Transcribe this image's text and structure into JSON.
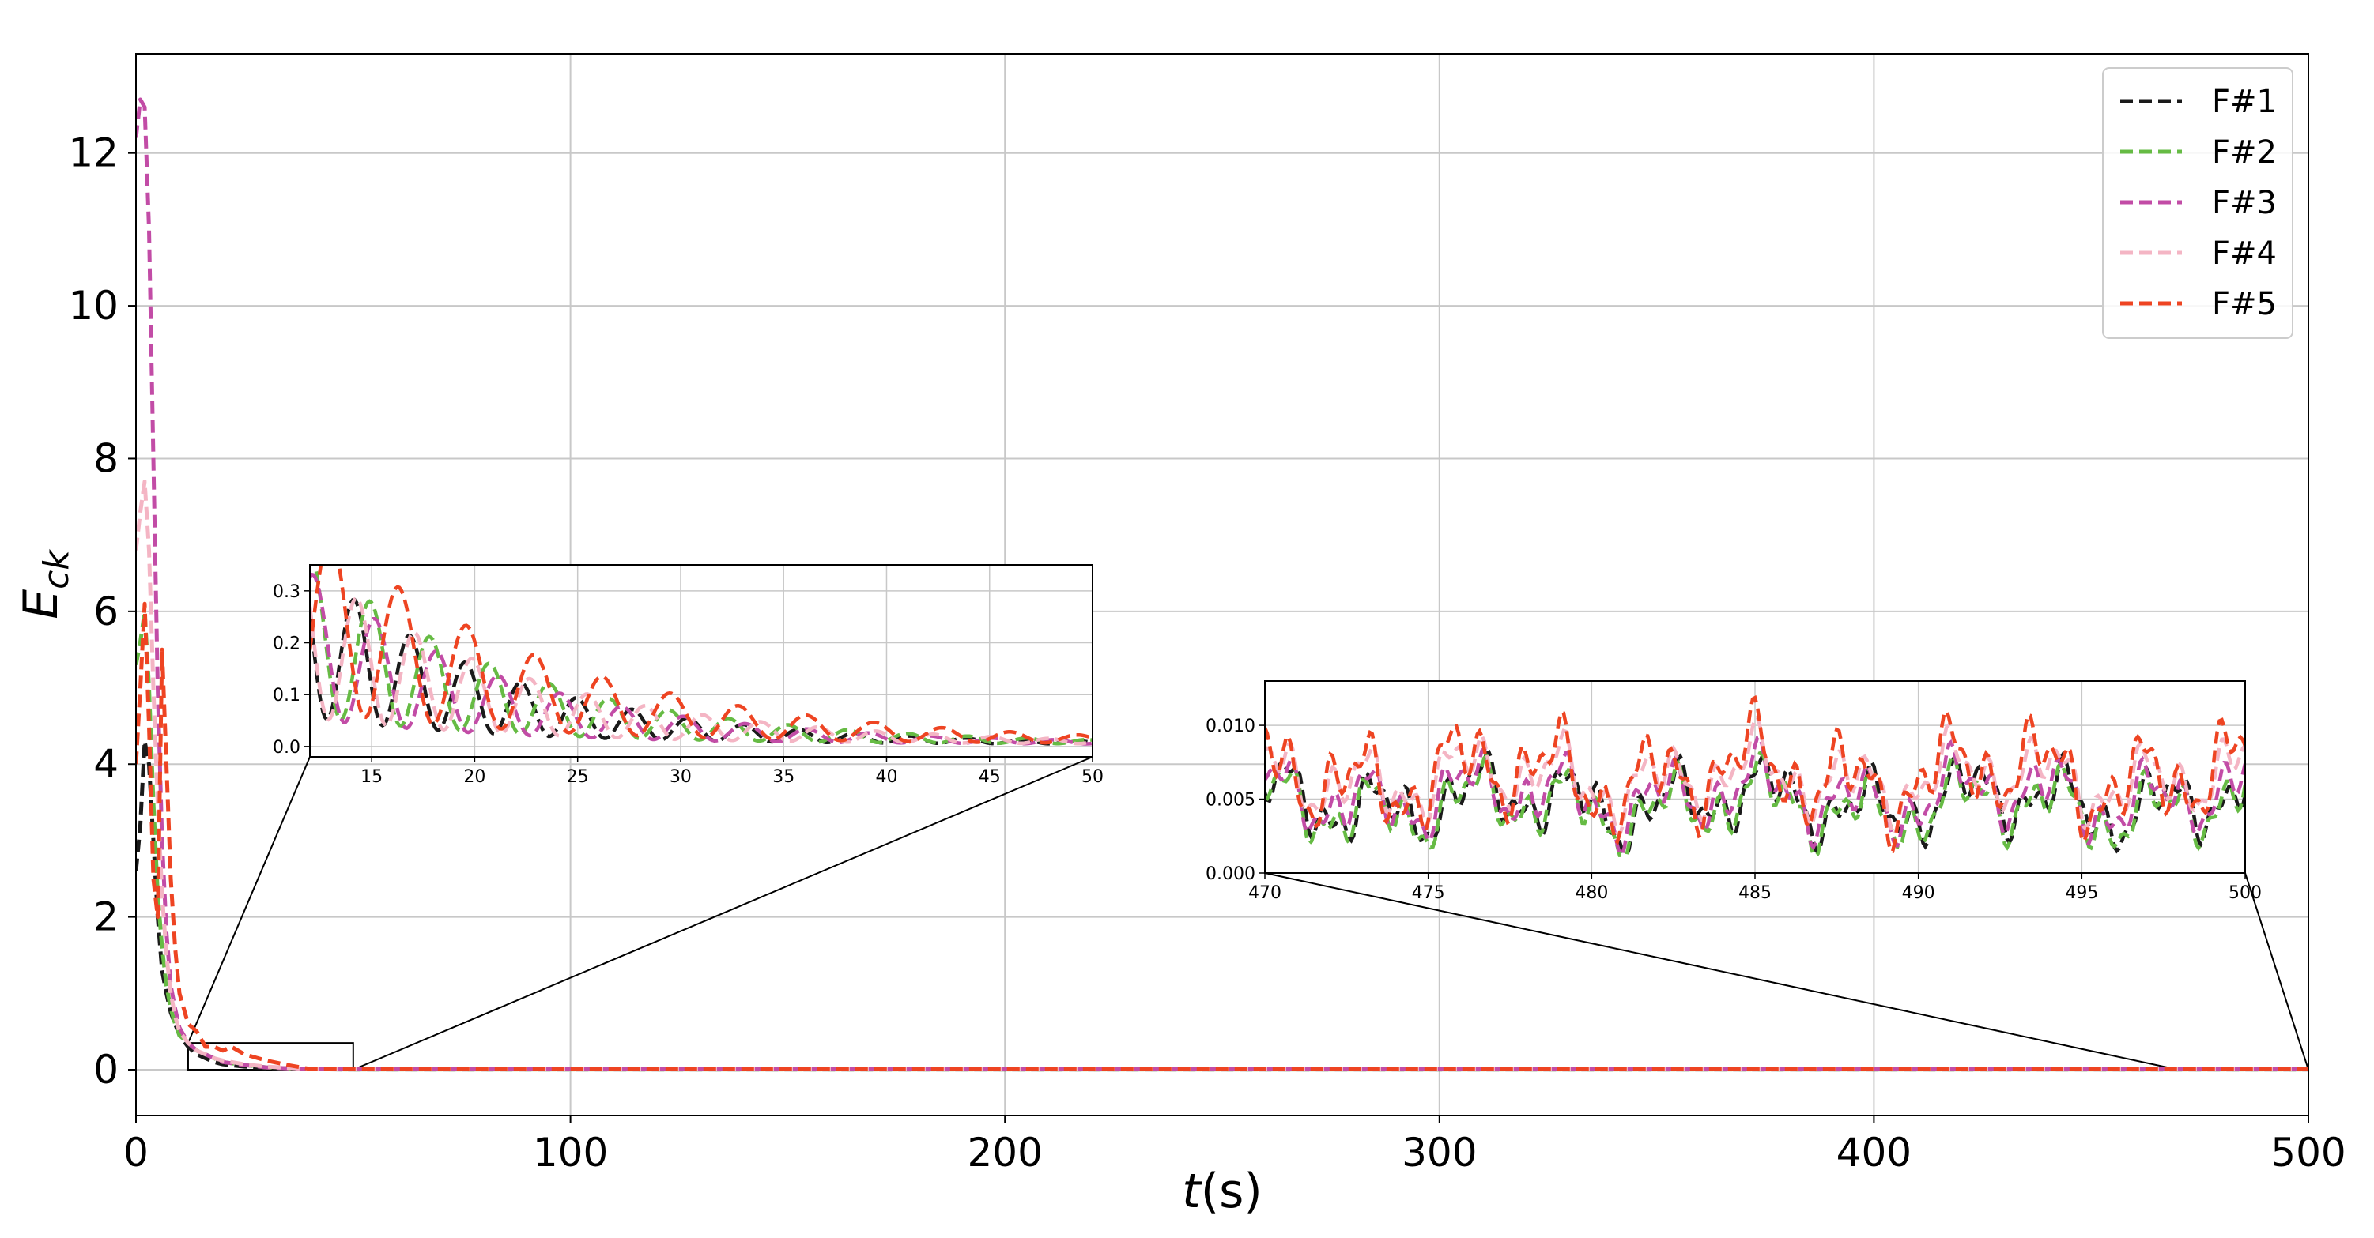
{
  "chart_data": {
    "type": "line",
    "xlabel": "t(s)",
    "ylabel": "E_ck",
    "xlim": [
      0,
      500
    ],
    "ylim": [
      -0.6,
      13.3
    ],
    "xticks": [
      0,
      100,
      200,
      300,
      400,
      500
    ],
    "yticks": [
      0,
      2,
      4,
      6,
      8,
      10,
      12
    ],
    "grid": true,
    "legend_position": "top-right",
    "series": [
      {
        "name": "F#1",
        "color": "#1a1a1a",
        "dash": "dashed",
        "x": [
          0,
          1,
          2,
          3,
          4,
          5,
          6,
          7,
          8,
          9,
          10,
          12,
          14,
          16,
          18,
          20,
          25,
          30,
          40,
          50,
          500
        ],
        "y": [
          2.6,
          3.2,
          4.3,
          4.0,
          3.0,
          2.0,
          1.3,
          1.0,
          0.75,
          0.6,
          0.45,
          0.3,
          0.2,
          0.15,
          0.1,
          0.07,
          0.04,
          0.02,
          0.005,
          0.004,
          0.004
        ]
      },
      {
        "name": "F#2",
        "color": "#66bb44",
        "dash": "dashed",
        "x": [
          0,
          1,
          2,
          3,
          4,
          5,
          6,
          7,
          8,
          9,
          10,
          12,
          14,
          16,
          18,
          20,
          25,
          30,
          40,
          50,
          500
        ],
        "y": [
          5.3,
          5.6,
          6.0,
          5.0,
          3.5,
          2.3,
          1.6,
          1.1,
          0.8,
          0.6,
          0.45,
          0.35,
          0.25,
          0.2,
          0.15,
          0.1,
          0.06,
          0.03,
          0.005,
          0.004,
          0.004
        ]
      },
      {
        "name": "F#3",
        "color": "#c24ca6",
        "dash": "dashed",
        "x": [
          0,
          1,
          2,
          3,
          4,
          5,
          6,
          7,
          8,
          9,
          10,
          12,
          14,
          16,
          18,
          20,
          25,
          30,
          40,
          50,
          500
        ],
        "y": [
          12.2,
          12.7,
          12.6,
          11.0,
          8.0,
          5.0,
          3.0,
          1.8,
          1.1,
          0.8,
          0.55,
          0.35,
          0.25,
          0.2,
          0.15,
          0.1,
          0.06,
          0.03,
          0.005,
          0.005,
          0.005
        ]
      },
      {
        "name": "F#4",
        "color": "#f4b5c4",
        "dash": "dashed",
        "x": [
          0,
          1,
          2,
          3,
          4,
          5,
          6,
          7,
          8,
          9,
          10,
          12,
          14,
          16,
          18,
          20,
          25,
          30,
          40,
          50,
          500
        ],
        "y": [
          6.8,
          7.3,
          7.7,
          6.8,
          5.0,
          3.5,
          2.3,
          1.5,
          1.0,
          0.7,
          0.5,
          0.35,
          0.25,
          0.2,
          0.15,
          0.12,
          0.07,
          0.04,
          0.008,
          0.007,
          0.007
        ]
      },
      {
        "name": "F#5",
        "color": "#ee4422",
        "dash": "dashed",
        "x": [
          0,
          1,
          2,
          3,
          4,
          5,
          6,
          7,
          8,
          9,
          10,
          12,
          14,
          16,
          18,
          20,
          22,
          25,
          30,
          35,
          40,
          50,
          500
        ],
        "y": [
          4.0,
          5.0,
          6.1,
          4.5,
          2.5,
          2.0,
          5.5,
          4.0,
          2.5,
          1.6,
          1.0,
          0.6,
          0.5,
          0.3,
          0.3,
          0.25,
          0.3,
          0.2,
          0.12,
          0.06,
          0.01,
          0.008,
          0.008
        ]
      }
    ],
    "insets": [
      {
        "xlim": [
          12,
          50
        ],
        "ylim": [
          -0.02,
          0.35
        ],
        "xticks": [
          15,
          20,
          25,
          30,
          35,
          40,
          45,
          50
        ],
        "xtick_labels": [
          "15",
          "20",
          "25",
          "30",
          "35",
          "40",
          "45",
          "50"
        ],
        "yticks": [
          0.0,
          0.1,
          0.2,
          0.3
        ],
        "ytick_labels": [
          "0.0",
          "0.1",
          "0.2",
          "0.3"
        ],
        "zoom_box": {
          "x": [
            12,
            50
          ],
          "y": [
            0,
            0.35
          ]
        }
      },
      {
        "xlim": [
          470,
          500
        ],
        "ylim": [
          0.0,
          0.013
        ],
        "xticks": [
          470,
          475,
          480,
          485,
          490,
          495,
          500
        ],
        "xtick_labels": [
          "470",
          "475",
          "480",
          "485",
          "490",
          "495",
          "500"
        ],
        "yticks": [
          0.0,
          0.005,
          0.01
        ],
        "ytick_labels": [
          "0.000",
          "0.005",
          "0.010"
        ],
        "zoom_box": {
          "x": [
            470,
            500
          ],
          "y": [
            0,
            0.013
          ]
        }
      }
    ]
  }
}
